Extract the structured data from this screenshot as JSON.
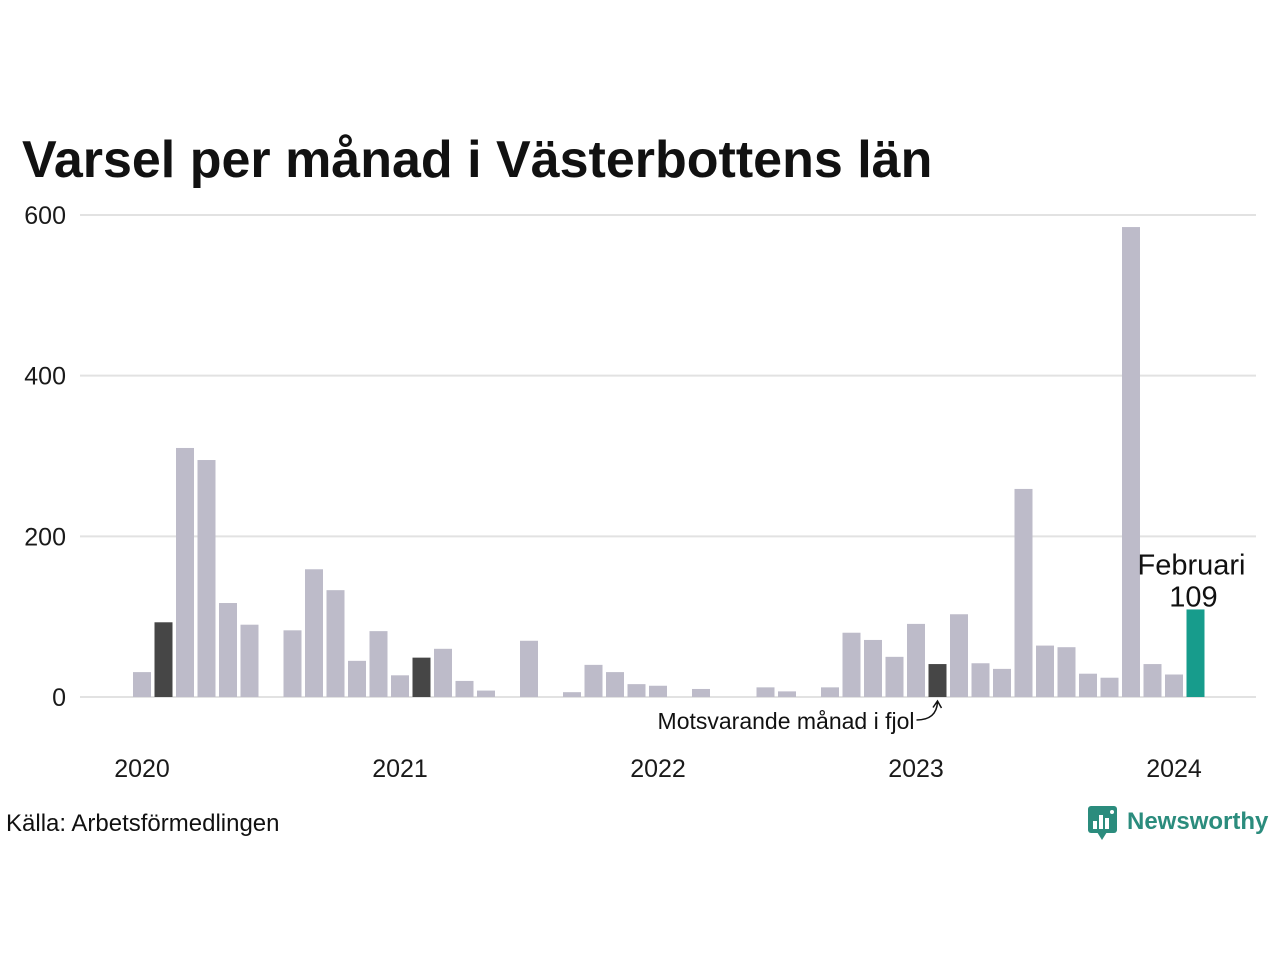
{
  "chart_data": {
    "type": "bar",
    "title": "Varsel per månad i Västerbottens län",
    "xlabel": "",
    "ylabel": "",
    "ylim": [
      0,
      600
    ],
    "yticks": [
      0,
      200,
      400,
      600
    ],
    "x_tick_labels": [
      "2020",
      "2021",
      "2022",
      "2023",
      "2024"
    ],
    "grid": true,
    "x": [
      "2020-01",
      "2020-02",
      "2020-03",
      "2020-04",
      "2020-05",
      "2020-06",
      "2020-07",
      "2020-08",
      "2020-09",
      "2020-10",
      "2020-11",
      "2020-12",
      "2021-01",
      "2021-02",
      "2021-03",
      "2021-04",
      "2021-05",
      "2021-06",
      "2021-07",
      "2021-08",
      "2021-09",
      "2021-10",
      "2021-11",
      "2021-12",
      "2022-01",
      "2022-02",
      "2022-03",
      "2022-04",
      "2022-05",
      "2022-06",
      "2022-07",
      "2022-08",
      "2022-09",
      "2022-10",
      "2022-11",
      "2022-12",
      "2023-01",
      "2023-02",
      "2023-03",
      "2023-04",
      "2023-05",
      "2023-06",
      "2023-07",
      "2023-08",
      "2023-09",
      "2023-10",
      "2023-11",
      "2023-12",
      "2024-01",
      "2024-02"
    ],
    "values": [
      31,
      93,
      310,
      295,
      117,
      90,
      0,
      83,
      159,
      133,
      45,
      82,
      27,
      49,
      60,
      20,
      8,
      0,
      70,
      0,
      6,
      40,
      31,
      16,
      14,
      0,
      10,
      0,
      0,
      12,
      7,
      0,
      12,
      80,
      71,
      50,
      91,
      41,
      103,
      42,
      35,
      259,
      64,
      62,
      29,
      24,
      585,
      41,
      28,
      109
    ],
    "annotations": {
      "current": {
        "x": "2024-02",
        "label": "Februari",
        "value": 109
      },
      "previous_year": {
        "x": "2023-02",
        "text": "Motsvarande månad i fjol"
      }
    }
  },
  "source": "Källa: Arbetsförmedlingen",
  "logo": {
    "text": "Newsworthy",
    "icon": "newsworthy-chart-bubble-icon"
  },
  "colors": {
    "bar": "#bdbbc9",
    "same_month": "#464646",
    "current_month": "#179c8c",
    "logo": "#2b8c7d",
    "text": "#111111"
  }
}
